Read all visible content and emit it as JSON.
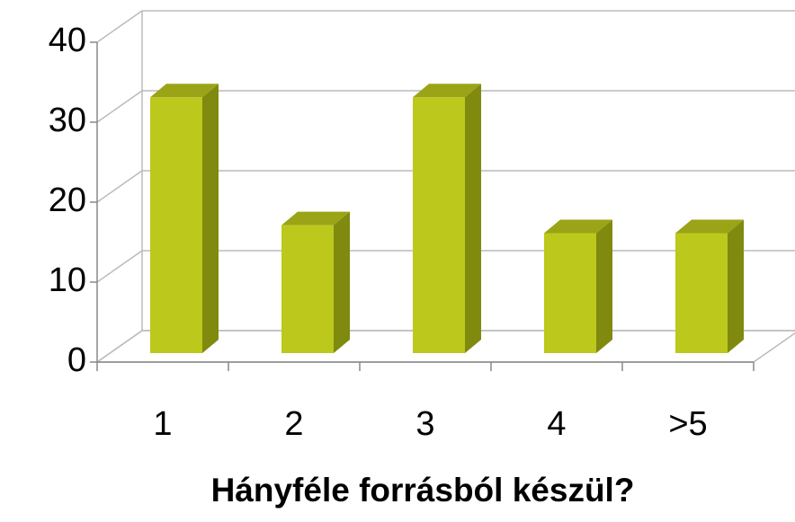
{
  "chart_data": {
    "type": "bar3d",
    "x_label": "Hányféle forrásból készül?",
    "categories": [
      "1",
      "2",
      "3",
      "4",
      ">5"
    ],
    "values": [
      32,
      16,
      32,
      15,
      15
    ],
    "color": "#bcc81c",
    "ylim": [
      0,
      40
    ],
    "yticks": [
      0,
      10,
      20,
      30,
      40
    ],
    "grid": true
  }
}
